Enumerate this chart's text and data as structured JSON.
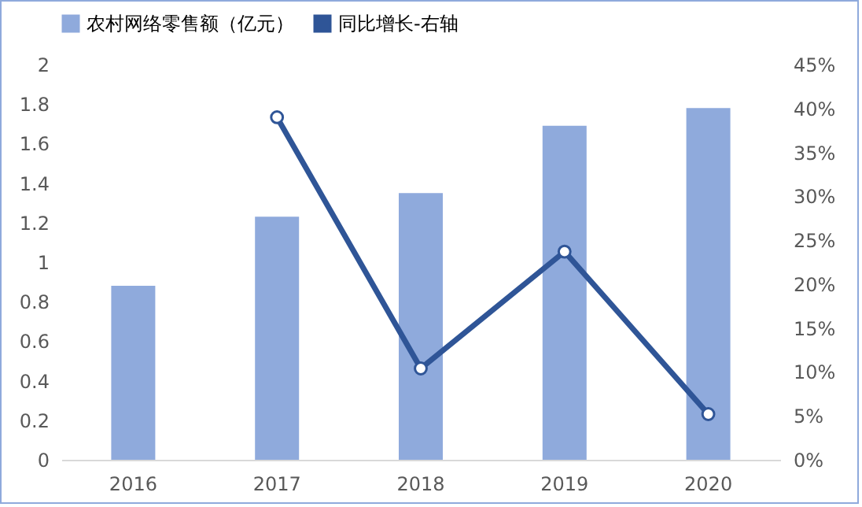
{
  "chart_data": {
    "type": "bar",
    "categories": [
      "2016",
      "2017",
      "2018",
      "2019",
      "2020"
    ],
    "series": [
      {
        "name": "农村网络零售额（亿元）",
        "color": "#8faadc",
        "values": [
          0.88,
          1.23,
          1.35,
          1.69,
          1.78
        ]
      },
      {
        "name": "同比增长-右轴",
        "type": "line",
        "axis": "y2",
        "color": "#2f5597",
        "marker": "circle",
        "values": [
          null,
          39.0,
          10.4,
          23.7,
          5.2
        ]
      }
    ],
    "ylim": [
      0,
      2
    ],
    "yticks": [
      0,
      0.2,
      0.4,
      0.6,
      0.8,
      1,
      1.2,
      1.4,
      1.6,
      1.8,
      2
    ],
    "y2lim": [
      0,
      45
    ],
    "y2ticks": [
      {
        "value": 0,
        "label": "0%"
      },
      {
        "value": 5,
        "label": "5%"
      },
      {
        "value": 10,
        "label": "10%"
      },
      {
        "value": 15,
        "label": "15%"
      },
      {
        "value": 20,
        "label": "20%"
      },
      {
        "value": 25,
        "label": "25%"
      },
      {
        "value": 30,
        "label": "30%"
      },
      {
        "value": 35,
        "label": "35%"
      },
      {
        "value": 40,
        "label": "40%"
      },
      {
        "value": 45,
        "label": "45%"
      }
    ],
    "grid": false,
    "legend": "top"
  }
}
